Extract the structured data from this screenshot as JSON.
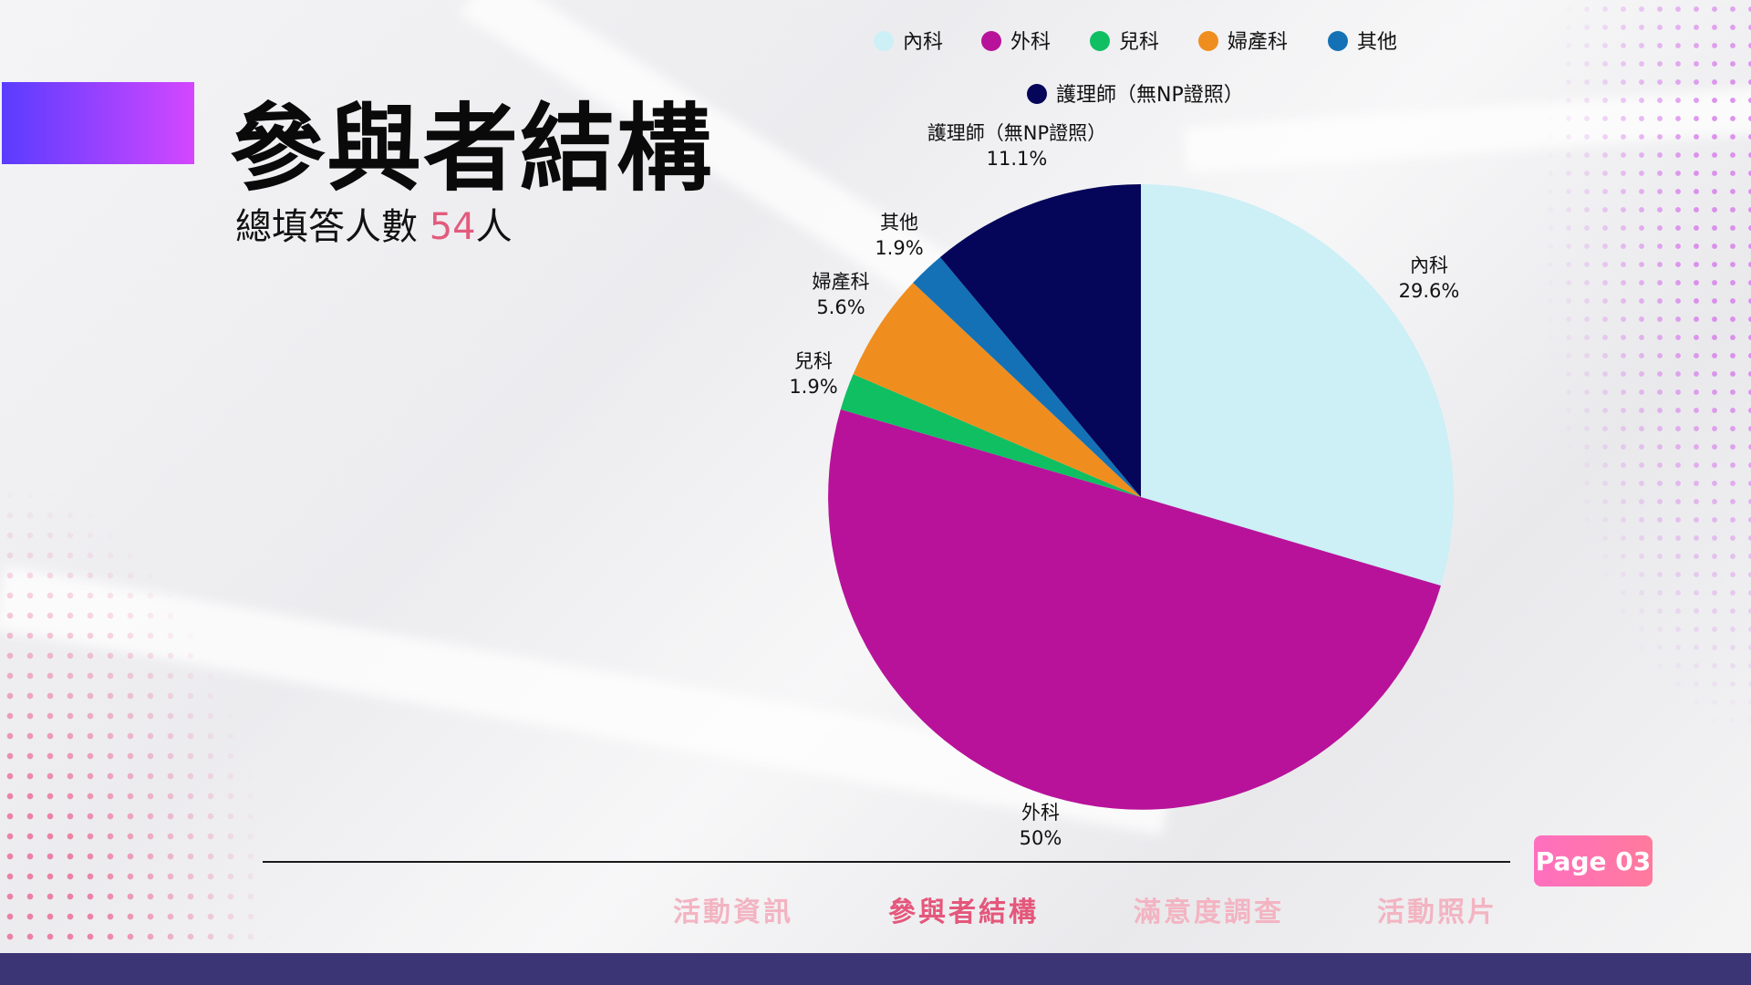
{
  "header": {
    "title": "參與者結構",
    "subtitle_prefix": "總填答人數 ",
    "subtitle_count": "54",
    "subtitle_suffix": "人"
  },
  "colors": {
    "accent_gradient_start": "#5a3cff",
    "accent_gradient_end": "#d447ff",
    "highlight": "#e25b7d",
    "footer_band": "#3c3575"
  },
  "chart_data": {
    "type": "pie",
    "title": "",
    "legend_position": "top",
    "slices": [
      {
        "name": "內科",
        "value": 29.6,
        "label": "29.6%",
        "color": "#cdeff6"
      },
      {
        "name": "外科",
        "value": 50,
        "label": "50%",
        "color": "#b8129a"
      },
      {
        "name": "兒科",
        "value": 1.9,
        "label": "1.9%",
        "color": "#0fbf62"
      },
      {
        "name": "婦產科",
        "value": 5.6,
        "label": "5.6%",
        "color": "#ef8e1e"
      },
      {
        "name": "其他",
        "value": 1.9,
        "label": "1.9%",
        "color": "#1471b5"
      },
      {
        "name": "護理師（無NP證照）",
        "value": 11.1,
        "label": "11.1%",
        "color": "#05055a"
      }
    ]
  },
  "page_badge": "Page 03",
  "nav": {
    "items": [
      {
        "label": "活動資訊",
        "active": false
      },
      {
        "label": "參與者結構",
        "active": true
      },
      {
        "label": "滿意度調查",
        "active": false
      },
      {
        "label": "活動照片",
        "active": false
      }
    ]
  }
}
